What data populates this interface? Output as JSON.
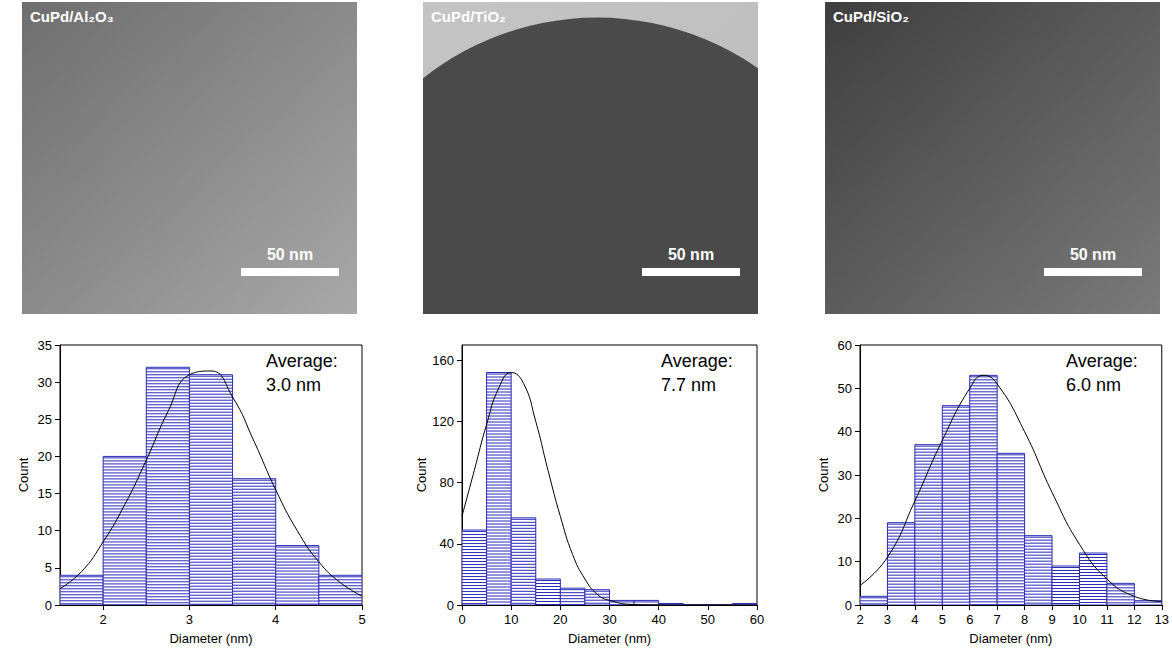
{
  "images": [
    {
      "label": "CuPd/Al₂O₃",
      "scale_bar": "50 nm"
    },
    {
      "label": "CuPd/TiO₂",
      "scale_bar": "50 nm"
    },
    {
      "label": "CuPd/SiO₂",
      "scale_bar": "50 nm"
    }
  ],
  "chart_data": [
    {
      "type": "histogram",
      "xlabel": "Diameter (nm)",
      "ylabel": "Count",
      "bins": [
        1.5,
        2,
        2.5,
        3,
        3.5,
        4,
        4.5,
        5
      ],
      "counts": [
        4,
        20,
        32,
        31,
        17,
        8,
        4
      ],
      "color": "#2b2bb8",
      "fit": {
        "color": "#000000",
        "x": [
          1.5,
          1.75,
          2,
          2.25,
          2.5,
          2.75,
          3,
          3.25,
          3.5,
          3.75,
          4,
          4.25,
          4.5,
          4.75,
          5
        ],
        "y": [
          2.2,
          4.5,
          8.5,
          13.5,
          19.5,
          26,
          31,
          31.5,
          28,
          22,
          15.5,
          10,
          5.8,
          3,
          1.2
        ]
      },
      "xlim": [
        1.5,
        5
      ],
      "xticks": [
        2,
        3,
        4,
        5
      ],
      "ylim": [
        0,
        35
      ],
      "yticks": [
        0,
        5,
        10,
        15,
        20,
        25,
        30,
        35
      ],
      "grid": false,
      "annotation": [
        "Average:",
        "3.0 nm"
      ]
    },
    {
      "type": "histogram",
      "xlabel": "Diameter (nm)",
      "ylabel": "Count",
      "bins": [
        0,
        5,
        10,
        15,
        20,
        25,
        30,
        35,
        40,
        45,
        50,
        55,
        60
      ],
      "counts": [
        49,
        152,
        57,
        17,
        11,
        10,
        3,
        3,
        1,
        0,
        0,
        1
      ],
      "color": "#2b2bb8",
      "fit": {
        "color": "#000000",
        "x": [
          0,
          2.5,
          5,
          7.5,
          10,
          12.5,
          15,
          17.5,
          20,
          22.5,
          25,
          27.5,
          30,
          35,
          40,
          60
        ],
        "y": [
          58,
          88,
          118,
          142,
          152,
          145,
          120,
          88,
          58,
          33,
          17,
          7,
          3,
          0.3,
          0,
          0
        ]
      },
      "xlim": [
        0,
        60
      ],
      "xticks": [
        0,
        10,
        20,
        30,
        40,
        50,
        60
      ],
      "ylim": [
        0,
        170
      ],
      "yticks": [
        0,
        40,
        80,
        120,
        160
      ],
      "grid": false,
      "annotation": [
        "Average:",
        "7.7 nm"
      ]
    },
    {
      "type": "histogram",
      "xlabel": "Diameter (nm)",
      "ylabel": "Count",
      "bins": [
        2,
        3,
        4,
        5,
        6,
        7,
        8,
        9,
        10,
        11,
        12,
        13
      ],
      "counts": [
        2,
        19,
        37,
        46,
        53,
        35,
        16,
        9,
        12,
        5,
        1
      ],
      "color": "#2b2bb8",
      "fit": {
        "color": "#000000",
        "x": [
          2,
          3,
          4,
          5,
          6,
          6.5,
          7,
          8,
          9,
          10,
          11,
          12,
          13
        ],
        "y": [
          4.5,
          11,
          24,
          38,
          50,
          53,
          51,
          40,
          26,
          14,
          6,
          2,
          0.8
        ]
      },
      "xlim": [
        2,
        13
      ],
      "xticks": [
        2,
        3,
        4,
        5,
        6,
        7,
        8,
        9,
        10,
        11,
        12,
        13
      ],
      "ylim": [
        0,
        60
      ],
      "yticks": [
        0,
        10,
        20,
        30,
        40,
        50,
        60
      ],
      "grid": false,
      "annotation": [
        "Average:",
        "6.0 nm"
      ]
    }
  ]
}
